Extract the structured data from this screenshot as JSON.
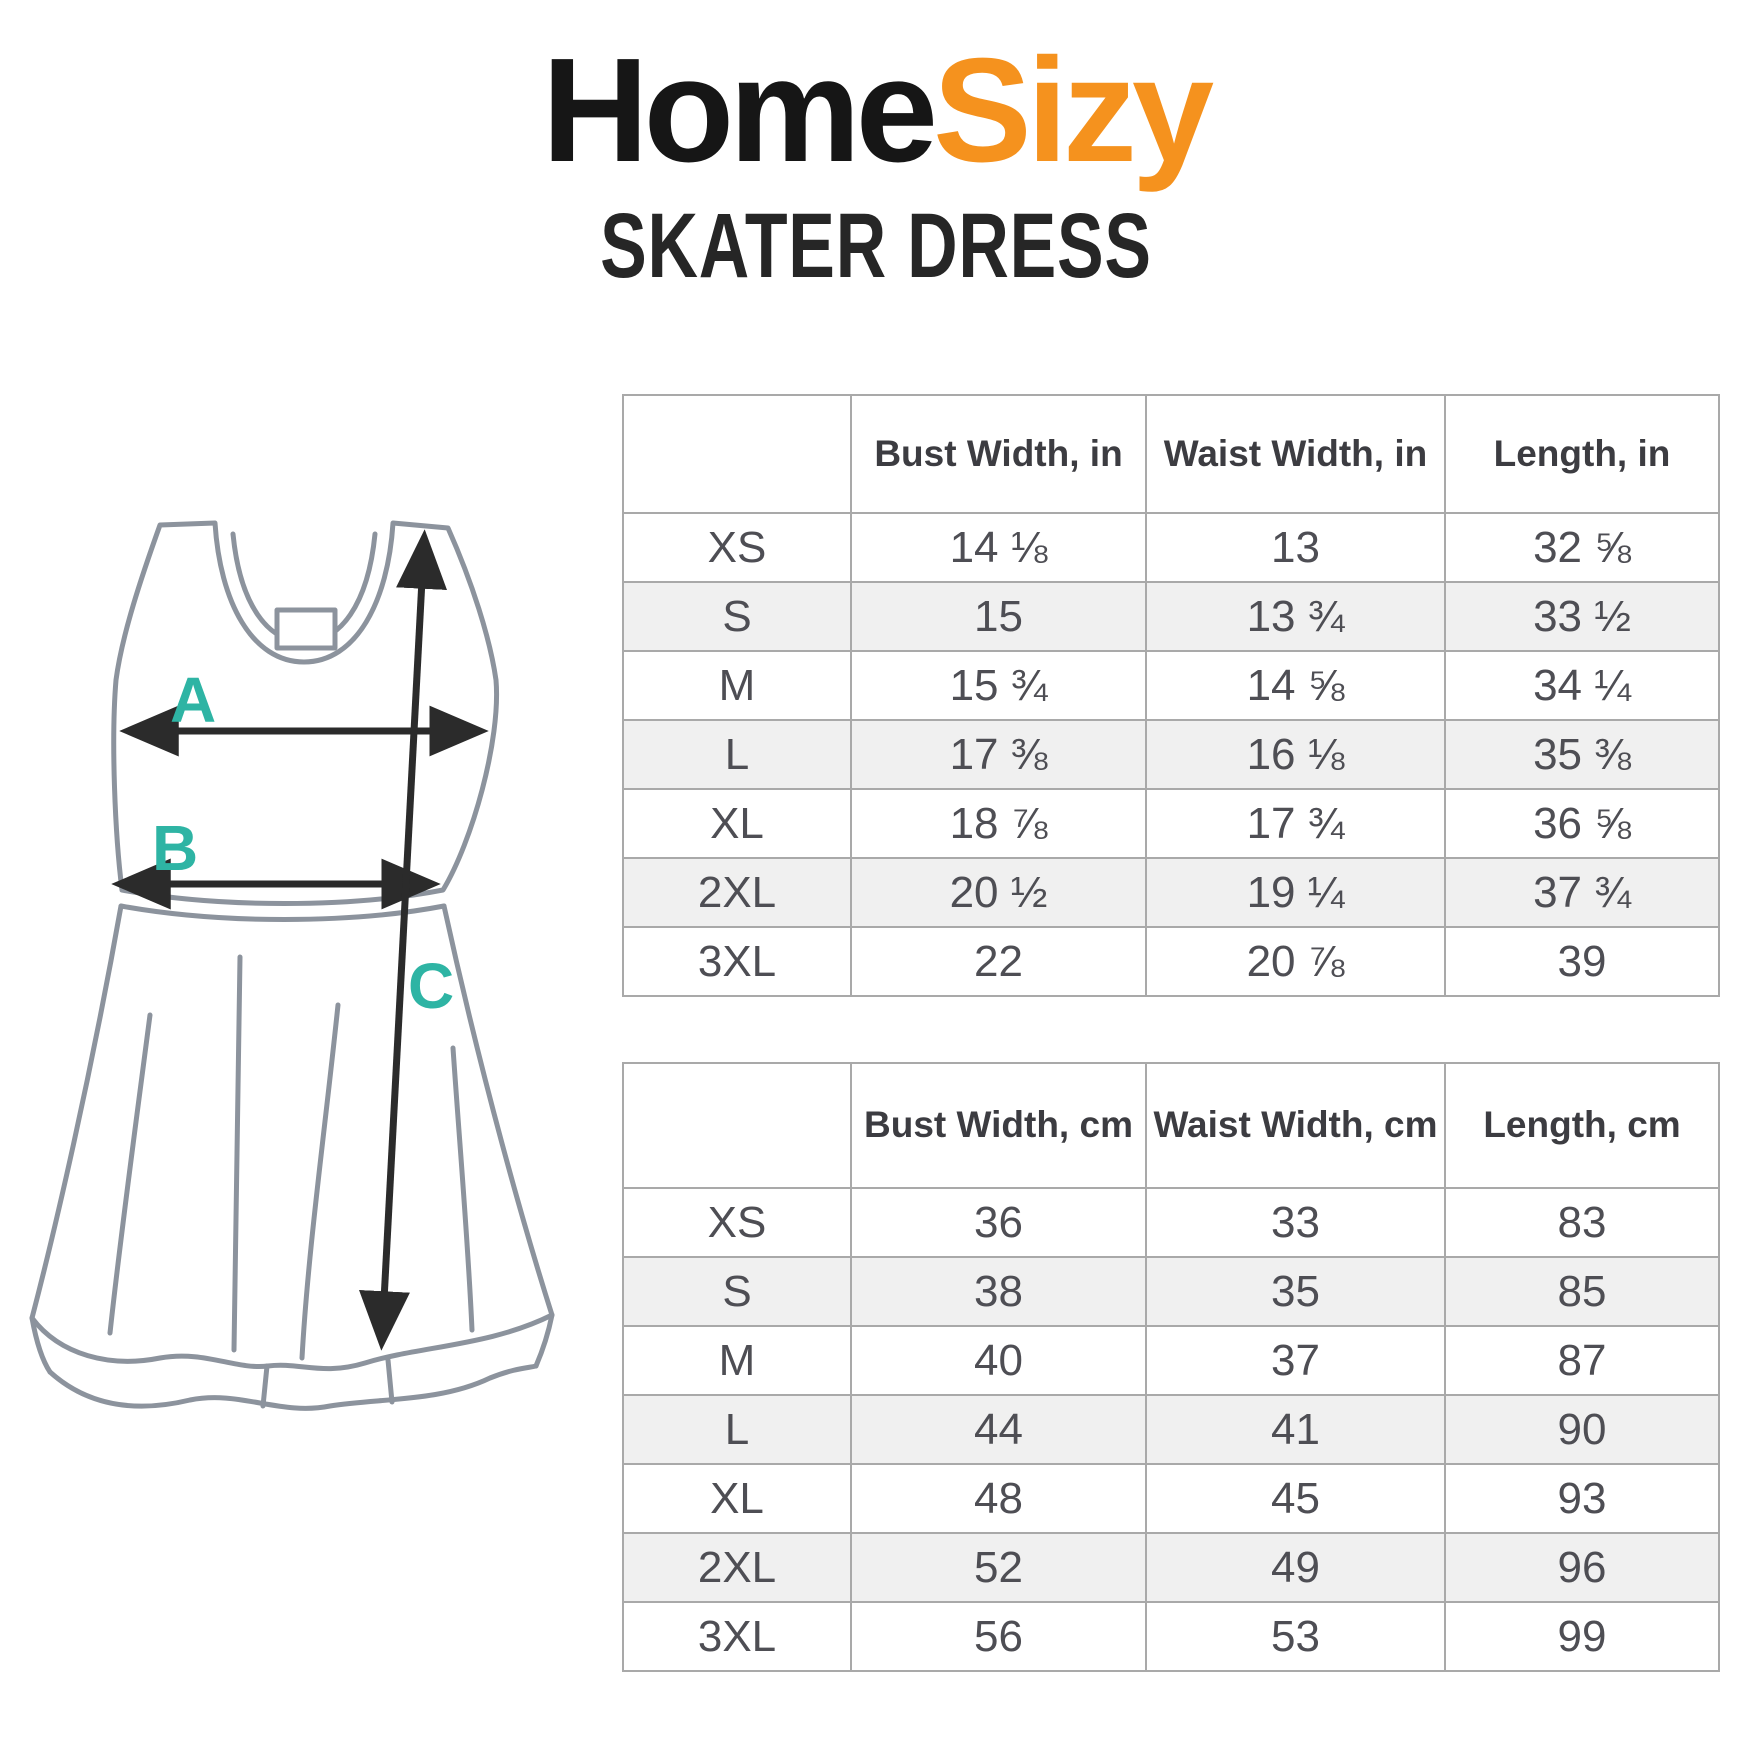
{
  "brand": {
    "name_black": "Home",
    "name_orange": "Sizy"
  },
  "product_title": "SKATER DRESS",
  "colors": {
    "brand_orange": "#F5921E",
    "diagram_label_teal": "#2EB4A4",
    "table_stripe": "#f0f0f0",
    "table_text": "#4e4e54"
  },
  "diagram": {
    "bust_label": "A",
    "waist_label": "B",
    "length_label": "C"
  },
  "tables": [
    {
      "unit": "in",
      "columns": [
        "",
        "Bust Width, in",
        "Waist Width, in",
        "Length, in"
      ],
      "rows": [
        [
          "XS",
          "14 ⅛",
          "13",
          "32 ⅝"
        ],
        [
          "S",
          "15",
          "13 ¾",
          "33 ½"
        ],
        [
          "M",
          "15 ¾",
          "14 ⅝",
          "34 ¼"
        ],
        [
          "L",
          "17 ⅜",
          "16 ⅛",
          "35 ⅜"
        ],
        [
          "XL",
          "18 ⅞",
          "17 ¾",
          "36 ⅝"
        ],
        [
          "2XL",
          "20 ½",
          "19 ¼",
          "37 ¾"
        ],
        [
          "3XL",
          "22",
          "20 ⅞",
          "39"
        ]
      ]
    },
    {
      "unit": "cm",
      "columns": [
        "",
        "Bust Width, cm",
        "Waist Width, cm",
        "Length, cm"
      ],
      "rows": [
        [
          "XS",
          "36",
          "33",
          "83"
        ],
        [
          "S",
          "38",
          "35",
          "85"
        ],
        [
          "M",
          "40",
          "37",
          "87"
        ],
        [
          "L",
          "44",
          "41",
          "90"
        ],
        [
          "XL",
          "48",
          "45",
          "93"
        ],
        [
          "2XL",
          "52",
          "49",
          "96"
        ],
        [
          "3XL",
          "56",
          "53",
          "99"
        ]
      ]
    }
  ]
}
